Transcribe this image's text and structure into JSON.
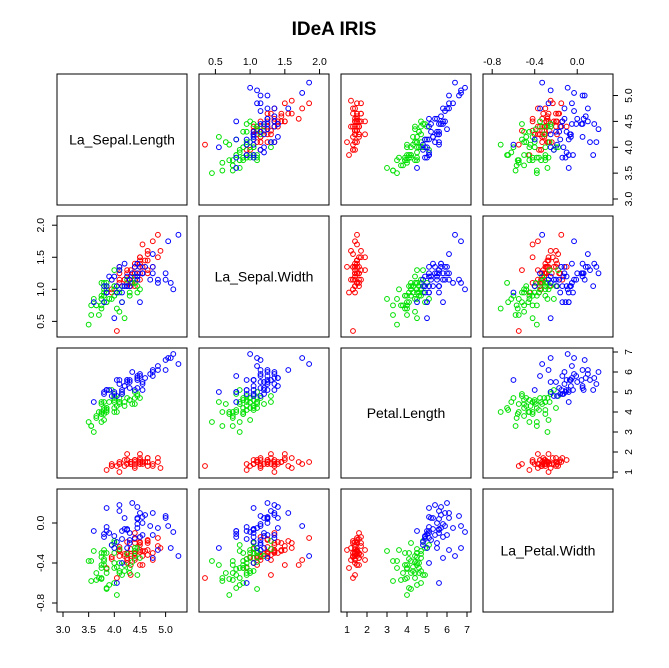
{
  "chart_data": {
    "type": "scatter",
    "title": "IDeA IRIS",
    "variables": [
      "La_Sepal.Length",
      "La_Sepal.Width",
      "Petal.Length",
      "La_Petal.Width"
    ],
    "ranges": [
      [
        3.0,
        5.3
      ],
      [
        0.35,
        2.05
      ],
      [
        1.0,
        6.9
      ],
      [
        -0.83,
        0.28
      ]
    ],
    "ticks": [
      [
        3.0,
        3.5,
        4.0,
        4.5,
        5.0
      ],
      [
        0.5,
        1.0,
        1.5,
        2.0
      ],
      [
        1,
        2,
        3,
        4,
        5,
        6,
        7
      ],
      [
        -0.8,
        -0.4,
        0.0
      ]
    ],
    "tick_labels": [
      [
        "3.0",
        "3.5",
        "4.0",
        "4.5",
        "5.0"
      ],
      [
        "0.5",
        "1.0",
        "1.5",
        "2.0"
      ],
      [
        "1",
        "2",
        "3",
        "4",
        "5",
        "6",
        "7"
      ],
      [
        "-0.8",
        "-0.4",
        "0.0"
      ]
    ],
    "grid": false,
    "legend": "none",
    "series": [
      {
        "color": "#ff0000",
        "points": [
          [
            4.5,
            1.35,
            1.4,
            -0.29
          ],
          [
            4.32,
            1.05,
            1.4,
            -0.26
          ],
          [
            4.2,
            1.15,
            1.3,
            -0.33
          ],
          [
            4.1,
            1.1,
            1.5,
            -0.28
          ],
          [
            4.4,
            1.4,
            1.4,
            -0.3
          ],
          [
            4.65,
            1.6,
            1.7,
            -0.2
          ],
          [
            4.1,
            1.25,
            1.4,
            -0.24
          ],
          [
            4.4,
            1.25,
            1.5,
            -0.31
          ],
          [
            3.95,
            0.95,
            1.4,
            -0.36
          ],
          [
            4.32,
            1.1,
            1.5,
            -0.42
          ],
          [
            4.65,
            1.45,
            1.5,
            -0.27
          ],
          [
            4.25,
            1.25,
            1.6,
            -0.3
          ],
          [
            4.25,
            1.05,
            1.4,
            -0.4
          ],
          [
            3.85,
            0.95,
            1.1,
            -0.45
          ],
          [
            4.9,
            1.6,
            1.2,
            -0.25
          ],
          [
            4.85,
            1.85,
            1.5,
            -0.15
          ],
          [
            4.65,
            1.55,
            1.3,
            -0.18
          ],
          [
            4.5,
            1.35,
            1.4,
            -0.22
          ],
          [
            4.85,
            1.5,
            1.7,
            -0.23
          ],
          [
            4.5,
            1.45,
            1.5,
            -0.2
          ],
          [
            4.65,
            1.3,
            1.7,
            -0.32
          ],
          [
            4.5,
            1.4,
            1.5,
            -0.19
          ],
          [
            4.1,
            1.35,
            1.0,
            -0.27
          ],
          [
            4.5,
            1.15,
            1.7,
            -0.14
          ],
          [
            4.25,
            1.3,
            1.9,
            -0.37
          ],
          [
            4.4,
            1.05,
            1.6,
            -0.35
          ],
          [
            4.4,
            1.25,
            1.6,
            -0.16
          ],
          [
            4.55,
            1.35,
            1.5,
            -0.28
          ],
          [
            4.55,
            1.25,
            1.4,
            -0.33
          ],
          [
            4.2,
            1.15,
            1.6,
            -0.31
          ],
          [
            4.25,
            1.1,
            1.6,
            -0.35
          ],
          [
            4.65,
            1.25,
            1.5,
            -0.17
          ],
          [
            4.55,
            1.7,
            1.5,
            -0.42
          ],
          [
            4.75,
            1.75,
            1.4,
            -0.37
          ],
          [
            4.32,
            1.1,
            1.5,
            -0.33
          ],
          [
            4.4,
            1.15,
            1.2,
            -0.37
          ],
          [
            4.75,
            1.35,
            1.3,
            -0.3
          ],
          [
            4.32,
            1.3,
            1.4,
            -0.52
          ],
          [
            3.95,
            1.0,
            1.3,
            -0.34
          ],
          [
            4.5,
            1.25,
            1.5,
            -0.29
          ],
          [
            4.4,
            1.35,
            1.3,
            -0.2
          ],
          [
            4.05,
            0.35,
            1.3,
            -0.55
          ],
          [
            3.95,
            1.15,
            1.3,
            -0.34
          ],
          [
            4.4,
            1.35,
            1.6,
            -0.1
          ],
          [
            4.5,
            1.5,
            1.9,
            -0.27
          ],
          [
            4.25,
            1.05,
            1.4,
            -0.19
          ],
          [
            4.5,
            1.5,
            1.6,
            -0.42
          ],
          [
            4.1,
            1.15,
            1.4,
            -0.33
          ],
          [
            4.6,
            1.45,
            1.5,
            -0.28
          ],
          [
            4.32,
            1.2,
            1.4,
            -0.31
          ]
        ]
      },
      {
        "color": "#00e000",
        "points": [
          [
            4.5,
            1.0,
            4.7,
            -0.35
          ],
          [
            4.1,
            0.95,
            4.5,
            -0.4
          ],
          [
            4.45,
            1.05,
            4.9,
            -0.25
          ],
          [
            3.7,
            0.6,
            4.0,
            -0.55
          ],
          [
            4.3,
            0.9,
            4.6,
            -0.45
          ],
          [
            3.9,
            0.85,
            4.5,
            -0.62
          ],
          [
            4.25,
            1.15,
            4.7,
            -0.31
          ],
          [
            3.55,
            0.75,
            3.3,
            -0.38
          ],
          [
            4.3,
            0.95,
            4.6,
            -0.5
          ],
          [
            3.75,
            0.9,
            3.9,
            -0.3
          ],
          [
            3.5,
            0.45,
            3.5,
            -0.38
          ],
          [
            4.0,
            1.05,
            4.2,
            -0.2
          ],
          [
            4.05,
            0.7,
            4.0,
            -0.72
          ],
          [
            4.1,
            1.0,
            4.7,
            -0.48
          ],
          [
            3.8,
            1.0,
            3.6,
            -0.27
          ],
          [
            4.4,
            1.2,
            4.4,
            -0.33
          ],
          [
            3.8,
            1.1,
            4.5,
            -0.3
          ],
          [
            3.85,
            0.8,
            4.1,
            -0.65
          ],
          [
            4.2,
            0.55,
            4.5,
            -0.42
          ],
          [
            3.75,
            0.7,
            3.9,
            -0.56
          ],
          [
            4.0,
            1.3,
            4.8,
            -0.18
          ],
          [
            4.0,
            0.9,
            4.0,
            -0.45
          ],
          [
            4.15,
            0.8,
            4.9,
            -0.52
          ],
          [
            4.0,
            0.9,
            4.7,
            -0.6
          ],
          [
            4.2,
            1.05,
            4.3,
            -0.48
          ],
          [
            4.35,
            1.1,
            4.4,
            -0.39
          ],
          [
            4.45,
            0.95,
            4.8,
            -0.52
          ],
          [
            4.4,
            1.1,
            5.0,
            -0.25
          ],
          [
            4.0,
            1.0,
            4.5,
            -0.3
          ],
          [
            3.75,
            0.85,
            3.5,
            -0.45
          ],
          [
            3.65,
            0.75,
            3.8,
            -0.5
          ],
          [
            3.65,
            0.75,
            3.7,
            -0.57
          ],
          [
            3.8,
            0.9,
            3.9,
            -0.42
          ],
          [
            3.95,
            0.85,
            5.1,
            -0.22
          ],
          [
            3.75,
            1.1,
            4.5,
            -0.34
          ],
          [
            4.1,
            1.3,
            4.5,
            -0.26
          ],
          [
            4.4,
            1.1,
            4.7,
            -0.28
          ],
          [
            4.1,
            0.65,
            4.4,
            -0.5
          ],
          [
            3.85,
            1.05,
            4.1,
            -0.3
          ],
          [
            3.75,
            0.75,
            4.0,
            -0.42
          ],
          [
            3.75,
            0.85,
            4.4,
            -0.55
          ],
          [
            4.0,
            1.05,
            4.6,
            -0.4
          ],
          [
            3.85,
            0.8,
            4.0,
            -0.46
          ],
          [
            3.55,
            0.6,
            3.3,
            -0.58
          ],
          [
            3.8,
            0.9,
            4.2,
            -0.38
          ],
          [
            3.85,
            1.1,
            4.2,
            -0.66
          ],
          [
            3.85,
            1.0,
            4.2,
            -0.5
          ],
          [
            4.05,
            0.95,
            4.3,
            -0.44
          ],
          [
            3.6,
            0.85,
            3.0,
            -0.28
          ],
          [
            3.8,
            0.95,
            4.1,
            -0.36
          ]
        ]
      },
      {
        "color": "#0000ff",
        "points": [
          [
            4.35,
            1.25,
            6.0,
            0.2
          ],
          [
            3.85,
            0.95,
            5.1,
            -0.08
          ],
          [
            4.7,
            1.15,
            5.9,
            -0.03
          ],
          [
            4.3,
            1.05,
            5.6,
            -0.1
          ],
          [
            4.45,
            1.15,
            5.8,
            -0.01
          ],
          [
            5.0,
            1.15,
            6.6,
            0.07
          ],
          [
            3.6,
            0.8,
            4.5,
            -0.08
          ],
          [
            4.85,
            1.1,
            6.3,
            -0.05
          ],
          [
            4.5,
            0.8,
            5.8,
            -0.14
          ],
          [
            4.75,
            1.55,
            6.1,
            0.1
          ],
          [
            4.4,
            1.35,
            5.1,
            -0.15
          ],
          [
            4.2,
            1.05,
            5.3,
            -0.06
          ],
          [
            4.55,
            1.25,
            5.5,
            0.0
          ],
          [
            3.8,
            0.8,
            5.0,
            -0.11
          ],
          [
            3.85,
            1.05,
            5.1,
            0.15
          ],
          [
            4.2,
            1.4,
            5.3,
            0.05
          ],
          [
            4.3,
            1.15,
            5.5,
            -0.2
          ],
          [
            5.05,
            1.75,
            6.7,
            -0.03
          ],
          [
            5.15,
            1.0,
            6.9,
            -0.09
          ],
          [
            4.0,
            0.55,
            5.0,
            -0.25
          ],
          [
            4.6,
            1.35,
            5.7,
            0.08
          ],
          [
            3.8,
            1.05,
            4.9,
            -0.14
          ],
          [
            5.1,
            1.1,
            6.7,
            -0.25
          ],
          [
            4.15,
            0.95,
            4.9,
            -0.16
          ],
          [
            4.45,
            1.4,
            5.7,
            -0.05
          ],
          [
            4.75,
            1.35,
            6.0,
            -0.12
          ],
          [
            4.05,
            1.05,
            4.8,
            -0.19
          ],
          [
            4.0,
            1.2,
            4.9,
            -0.13
          ],
          [
            4.25,
            1.05,
            5.6,
            -0.06
          ],
          [
            4.75,
            1.25,
            5.8,
            -0.35
          ],
          [
            4.85,
            1.15,
            6.1,
            -0.27
          ],
          [
            5.25,
            1.85,
            6.4,
            -0.33
          ],
          [
            4.25,
            1.05,
            5.6,
            -0.07
          ],
          [
            4.15,
            1.05,
            5.1,
            -0.4
          ],
          [
            4.05,
            0.95,
            5.6,
            -0.6
          ],
          [
            5.0,
            1.25,
            6.1,
            0.05
          ],
          [
            4.1,
            1.3,
            5.6,
            0.12
          ],
          [
            4.25,
            1.2,
            5.5,
            -0.25
          ],
          [
            3.95,
            1.15,
            4.8,
            -0.22
          ],
          [
            4.55,
            1.25,
            5.4,
            -0.12
          ],
          [
            4.45,
            1.25,
            5.6,
            0.04
          ],
          [
            4.55,
            1.25,
            5.1,
            0.06
          ],
          [
            3.85,
            0.95,
            5.1,
            -0.04
          ],
          [
            4.5,
            1.35,
            5.9,
            0.1
          ],
          [
            4.45,
            1.4,
            5.7,
            0.16
          ],
          [
            4.45,
            1.2,
            5.2,
            0.05
          ],
          [
            4.15,
            0.8,
            5.0,
            -0.08
          ],
          [
            4.3,
            1.15,
            5.2,
            -0.17
          ],
          [
            4.1,
            1.35,
            5.4,
            0.18
          ],
          [
            3.9,
            1.2,
            5.1,
            -0.1
          ]
        ]
      }
    ]
  }
}
